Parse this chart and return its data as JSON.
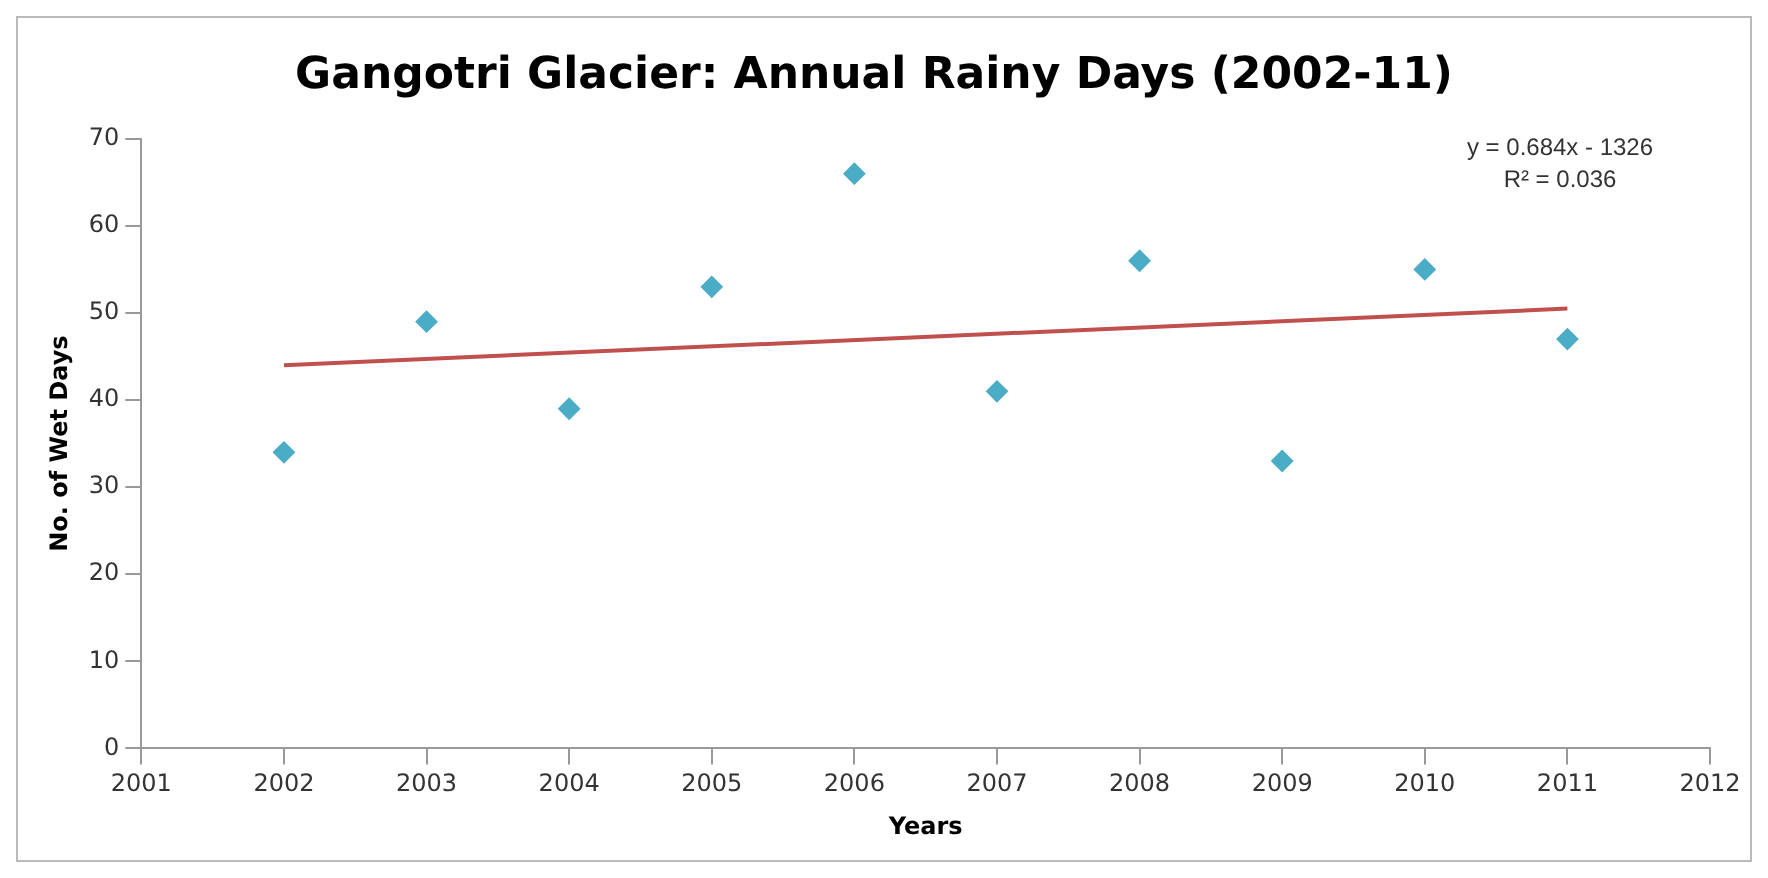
{
  "chart_data": {
    "type": "scatter",
    "title": "Gangotri Glacier: Annual Rainy Days (2002-11)",
    "xlabel": "Years",
    "ylabel": "No. of Wet Days",
    "x": [
      2002,
      2003,
      2004,
      2005,
      2006,
      2007,
      2008,
      2009,
      2010,
      2011
    ],
    "series": [
      {
        "type": "scatter",
        "color": "#4bacc6",
        "marker": "diamond",
        "values": [
          34,
          49,
          39,
          53,
          66,
          41,
          56,
          33,
          55,
          47
        ]
      },
      {
        "type": "line",
        "color": "#c0504d",
        "marker": "none",
        "x": [
          2002,
          2011
        ],
        "values": [
          44,
          50.5
        ]
      }
    ],
    "xlim": [
      2001,
      2012
    ],
    "xticks": [
      2001,
      2002,
      2003,
      2004,
      2005,
      2006,
      2007,
      2008,
      2009,
      2010,
      2011,
      2012
    ],
    "ylim": [
      0,
      70
    ],
    "yticks": [
      0,
      10,
      20,
      30,
      40,
      50,
      60,
      70
    ],
    "grid": false,
    "legend": false,
    "annotations": [
      "y = 0.684x - 1326",
      "R² = 0.036"
    ]
  }
}
